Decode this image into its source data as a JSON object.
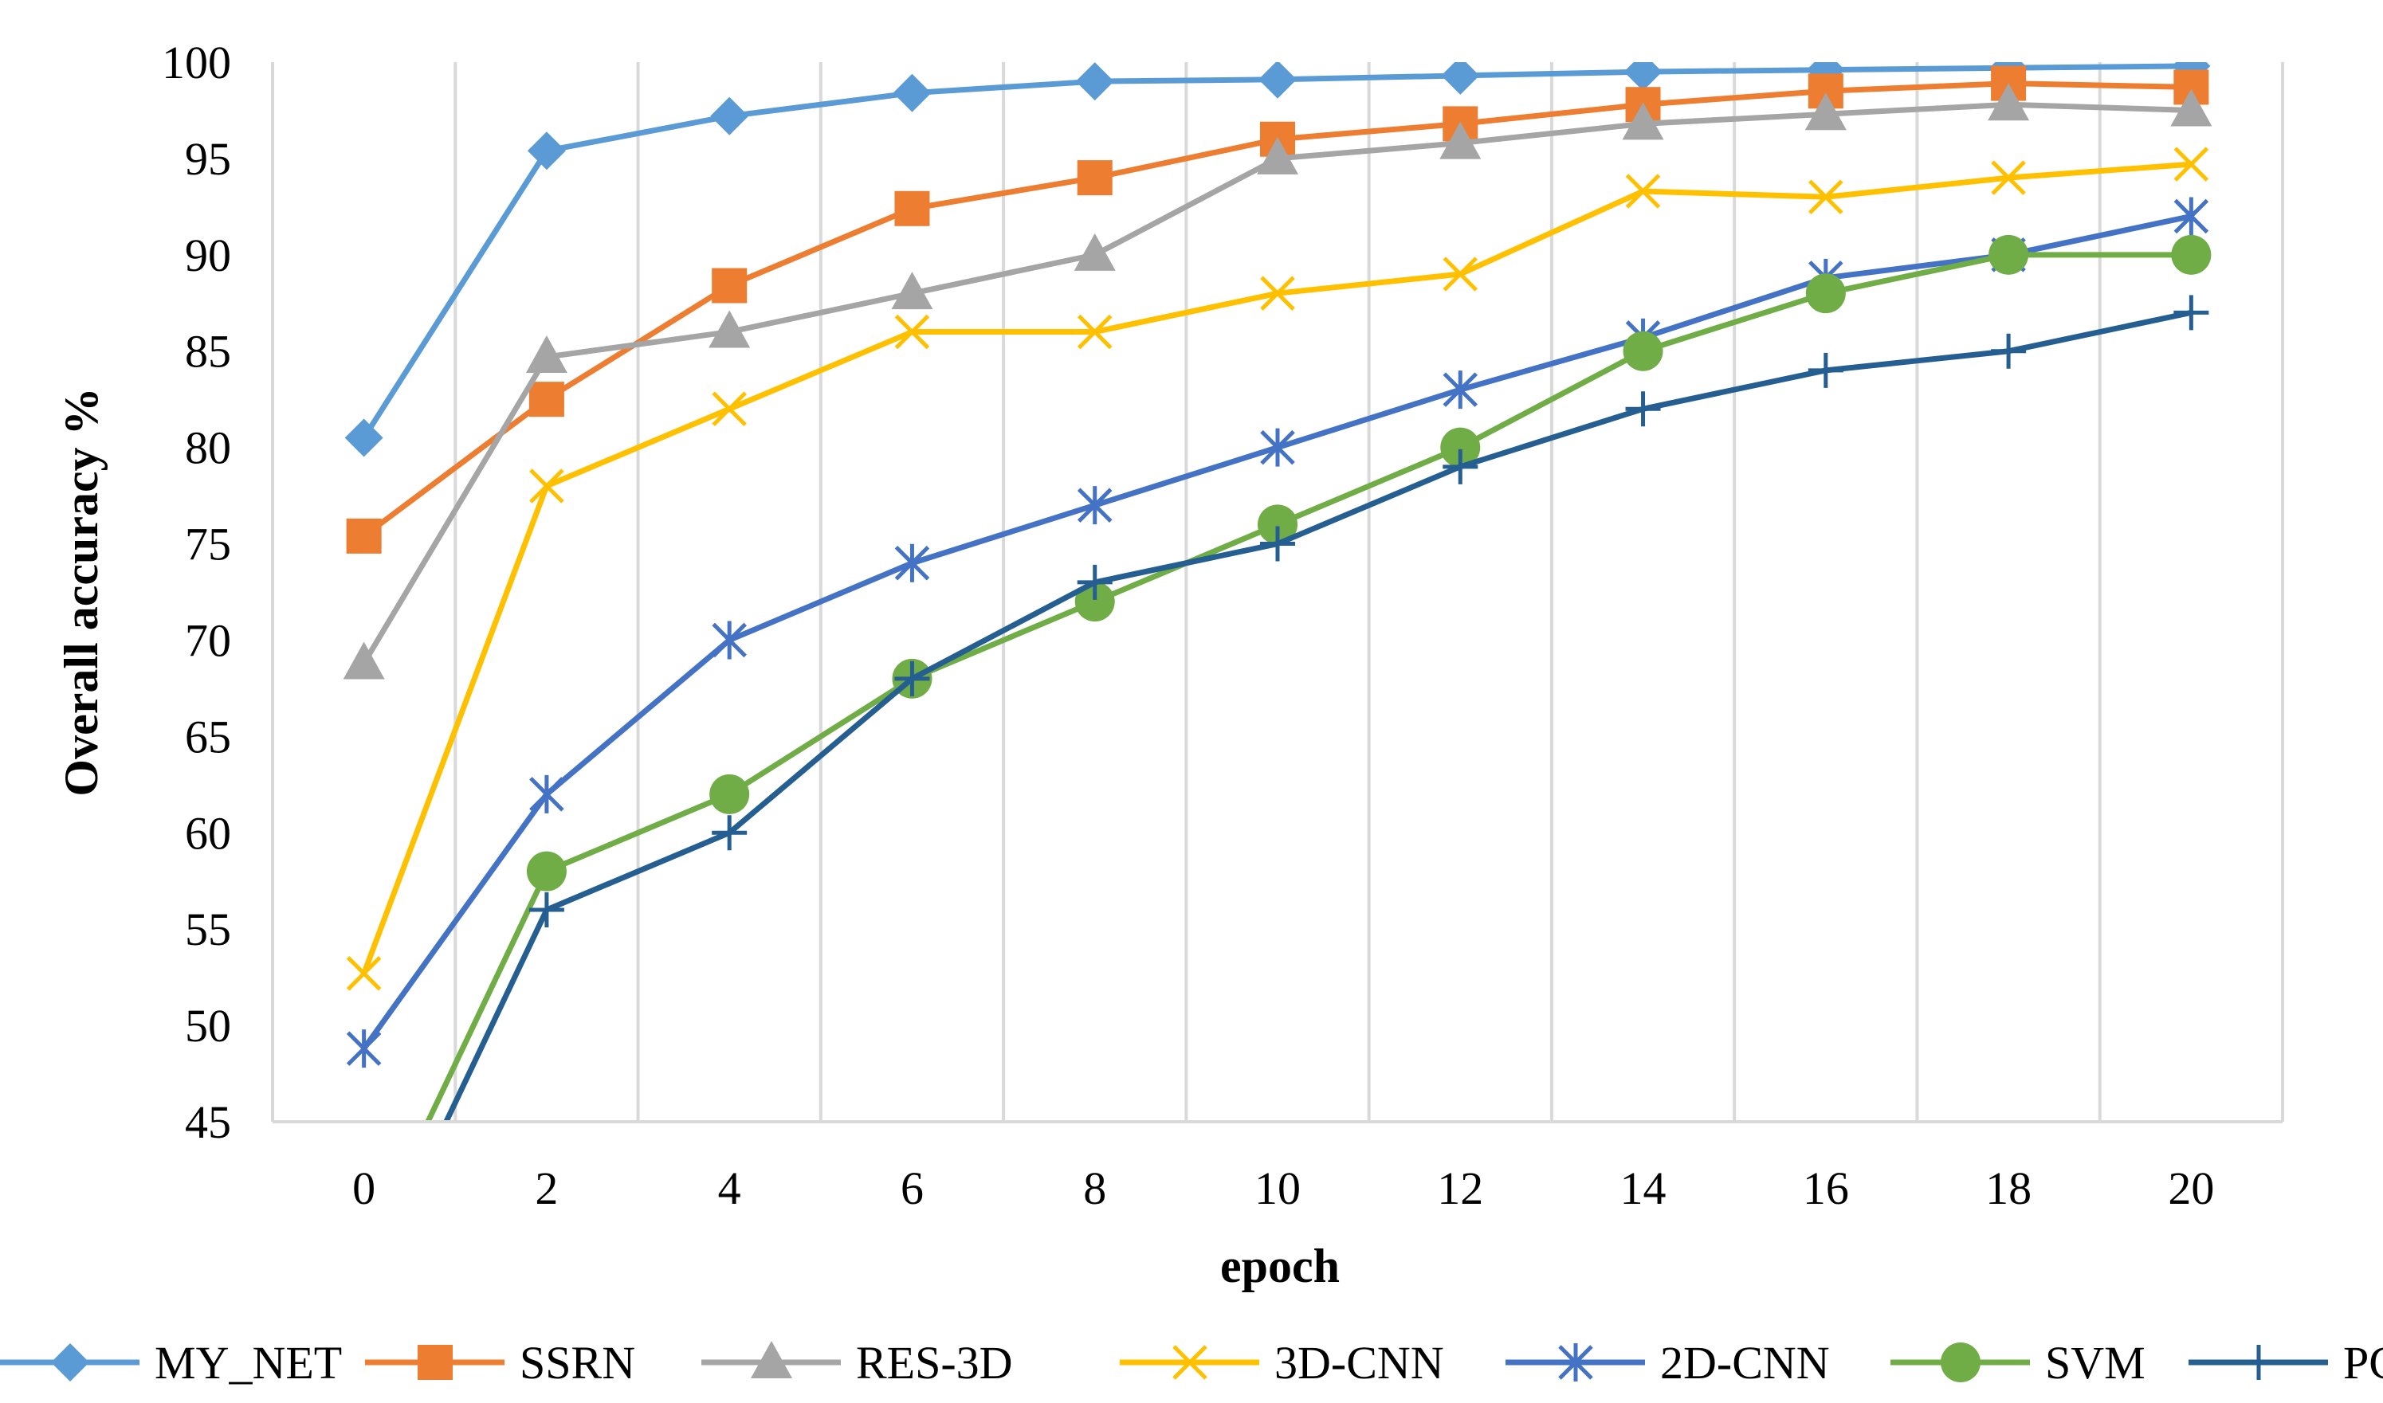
{
  "chart_data": {
    "type": "line",
    "title": "",
    "xlabel": "epoch",
    "ylabel": "Overall accuracy %",
    "x": [
      0,
      2,
      4,
      6,
      8,
      10,
      12,
      14,
      16,
      18,
      20
    ],
    "x_tick_labels": [
      "0",
      "2",
      "4",
      "6",
      "8",
      "10",
      "12",
      "14",
      "16",
      "18",
      "20"
    ],
    "ylim": [
      45,
      100
    ],
    "y_ticks": [
      45,
      50,
      55,
      60,
      65,
      70,
      75,
      80,
      85,
      90,
      95,
      100
    ],
    "y_tick_labels": [
      "45",
      "50",
      "55",
      "60",
      "65",
      "70",
      "75",
      "80",
      "85",
      "90",
      "95",
      "100"
    ],
    "grid": "vertical",
    "legend_position": "bottom",
    "series": [
      {
        "name": "MY_NET",
        "color": "#5B9BD5",
        "marker": "diamond",
        "values": [
          80.5,
          95.4,
          97.2,
          98.4,
          99.0,
          99.1,
          99.3,
          99.5,
          99.6,
          99.7,
          99.8
        ]
      },
      {
        "name": "SSRN",
        "color": "#ED7D31",
        "marker": "square",
        "values": [
          75.4,
          82.5,
          88.4,
          92.4,
          94.0,
          96.0,
          96.8,
          97.8,
          98.5,
          98.9,
          98.7
        ]
      },
      {
        "name": "RES-3D",
        "color": "#A5A5A5",
        "marker": "triangle",
        "values": [
          68.8,
          84.7,
          86.0,
          88.0,
          90.0,
          95.0,
          95.8,
          96.8,
          97.3,
          97.8,
          97.5
        ]
      },
      {
        "name": "3D-CNN",
        "color": "#FFC000",
        "marker": "x",
        "values": [
          52.7,
          78.0,
          82.0,
          86.0,
          86.0,
          88.0,
          89.0,
          93.3,
          93.0,
          94.0,
          94.7
        ]
      },
      {
        "name": "2D-CNN",
        "color": "#4472C4",
        "marker": "star",
        "values": [
          48.8,
          62.0,
          70.0,
          74.0,
          77.0,
          80.0,
          83.0,
          85.7,
          88.8,
          90.0,
          92.0
        ]
      },
      {
        "name": "SVM",
        "color": "#70AD47",
        "marker": "circle",
        "values": [
          38.0,
          58.0,
          62.0,
          68.0,
          72.0,
          76.0,
          80.0,
          85.0,
          88.0,
          90.0,
          90.0
        ]
      },
      {
        "name": "PCA",
        "color": "#255E91",
        "marker": "plus",
        "values": [
          36.0,
          56.0,
          60.0,
          68.0,
          73.0,
          75.0,
          79.0,
          82.0,
          84.0,
          85.0,
          87.0
        ]
      }
    ]
  }
}
